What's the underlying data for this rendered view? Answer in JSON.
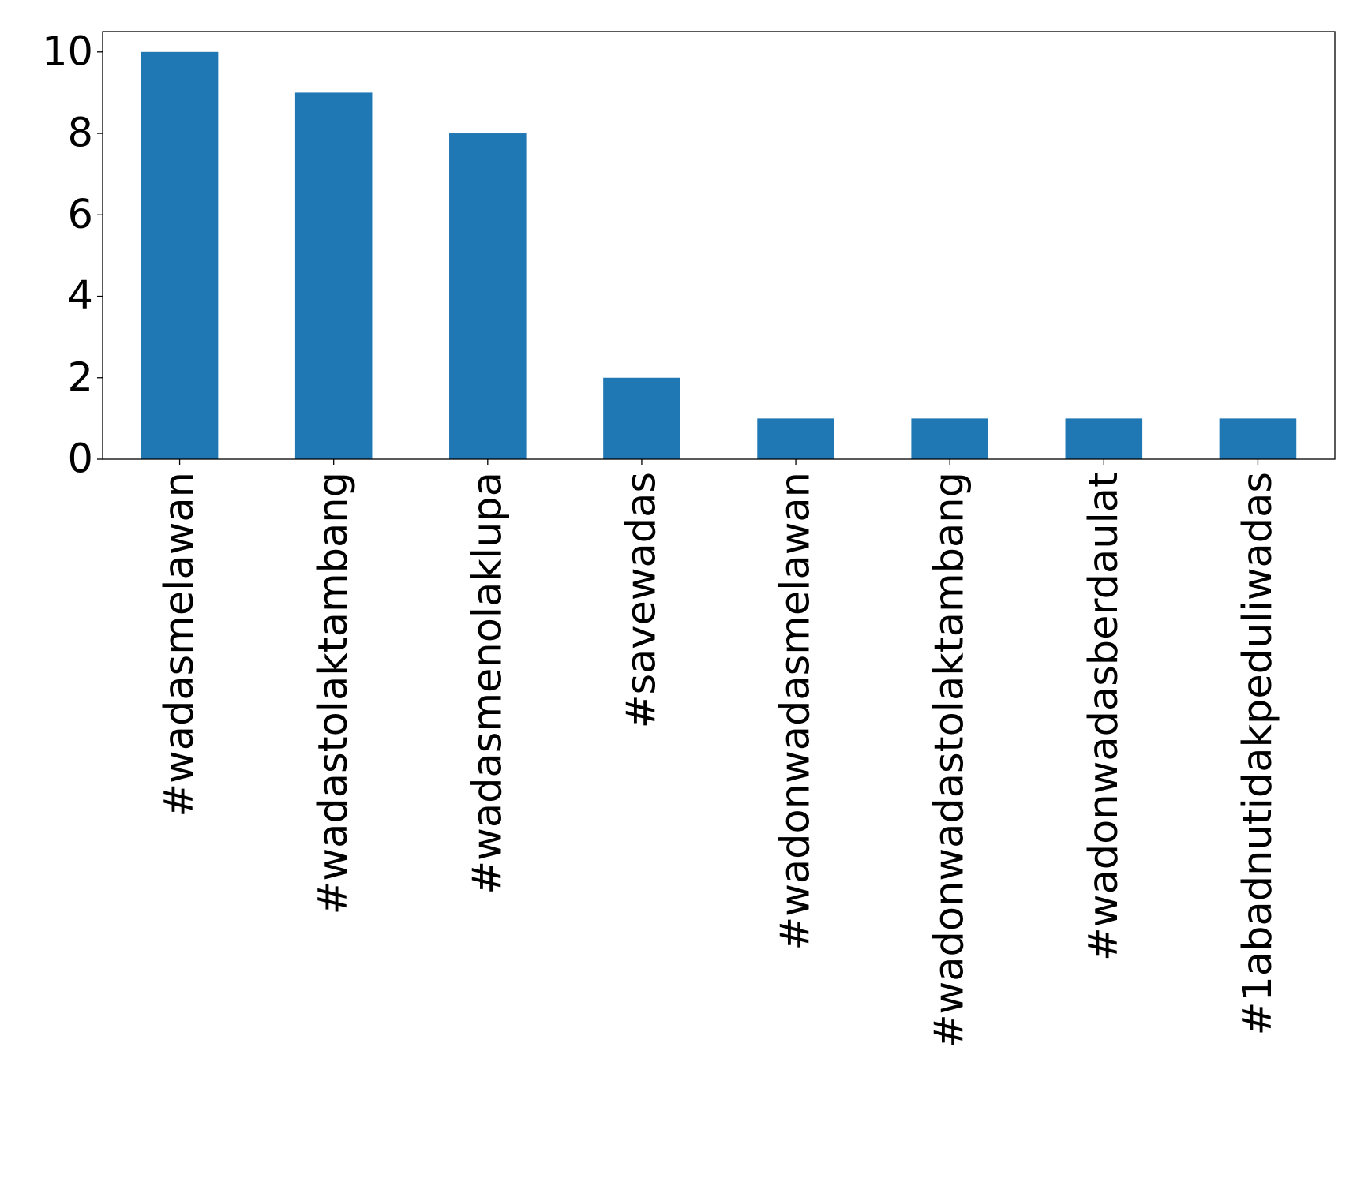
{
  "chart_data": {
    "type": "bar",
    "title": "",
    "xlabel": "",
    "ylabel": "",
    "categories": [
      "#wadasmelawan",
      "#wadastolaktambang",
      "#wadasmenolaklupa",
      "#savewadas",
      "#wadonwadasmelawan",
      "#wadonwadastolaktambang",
      "#wadonwadasberdaulat",
      "#1abadnutidakpeduliwadas"
    ],
    "values": [
      10,
      9,
      8,
      2,
      1,
      1,
      1,
      1
    ],
    "ylim": [
      0,
      10.5
    ],
    "yticks": [
      0,
      2,
      4,
      6,
      8,
      10
    ],
    "ytick_labels": [
      "0",
      "2",
      "4",
      "6",
      "8",
      "10"
    ],
    "bar_color": "#1f77b4",
    "grid": false,
    "legend": false
  }
}
